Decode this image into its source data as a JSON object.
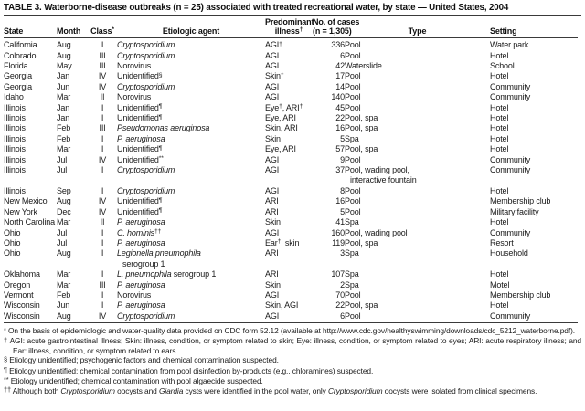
{
  "title": "TABLE 3. Waterborne-disease outbreaks (n = 25) associated with treated recreational water, by state — United States, 2004",
  "colors": {
    "text": "#1a1a1a",
    "rule": "#3a3a3a",
    "background": "#ffffff"
  },
  "table": {
    "columns": [
      {
        "key": "state",
        "label": "State"
      },
      {
        "key": "month",
        "label": "Month"
      },
      {
        "key": "class",
        "label": "Class",
        "sup": "*"
      },
      {
        "key": "agent",
        "label": "Etiologic agent"
      },
      {
        "key": "illness",
        "label": "Predominant",
        "line2": "illness",
        "sup2": "†"
      },
      {
        "key": "cases",
        "label": "No. of cases",
        "line2": "(n = 1,305)"
      },
      {
        "key": "type",
        "label": "Type"
      },
      {
        "key": "setting",
        "label": "Setting"
      }
    ],
    "rows": [
      {
        "state": "California",
        "month": "Aug",
        "class": "I",
        "agent": [
          {
            "t": "Cryptosporidium",
            "i": true
          }
        ],
        "illness": [
          {
            "t": "AGI"
          },
          {
            "t": "†",
            "s": true
          }
        ],
        "cases": "336",
        "type": "Pool",
        "setting": "Water park"
      },
      {
        "state": "Colorado",
        "month": "Aug",
        "class": "III",
        "agent": [
          {
            "t": "Cryptosporidium",
            "i": true
          }
        ],
        "illness": [
          {
            "t": "AGI"
          }
        ],
        "cases": "6",
        "type": "Pool",
        "setting": "Hotel"
      },
      {
        "state": "Florida",
        "month": "May",
        "class": "III",
        "agent": [
          {
            "t": "Norovirus"
          }
        ],
        "illness": [
          {
            "t": "AGI"
          }
        ],
        "cases": "42",
        "type": "Waterslide",
        "setting": "School"
      },
      {
        "state": "Georgia",
        "month": "Jan",
        "class": "IV",
        "agent": [
          {
            "t": "Unidentified"
          },
          {
            "t": "§",
            "s": true
          }
        ],
        "illness": [
          {
            "t": "Skin"
          },
          {
            "t": "†",
            "s": true
          }
        ],
        "cases": "17",
        "type": "Pool",
        "setting": "Hotel"
      },
      {
        "state": "Georgia",
        "month": "Jun",
        "class": "IV",
        "agent": [
          {
            "t": "Cryptosporidium",
            "i": true
          }
        ],
        "illness": [
          {
            "t": "AGI"
          }
        ],
        "cases": "14",
        "type": "Pool",
        "setting": "Community"
      },
      {
        "state": "Idaho",
        "month": "Mar",
        "class": "II",
        "agent": [
          {
            "t": "Norovirus"
          }
        ],
        "illness": [
          {
            "t": "AGI"
          }
        ],
        "cases": "140",
        "type": "Pool",
        "setting": "Community"
      },
      {
        "state": "Illinois",
        "month": "Jan",
        "class": "I",
        "agent": [
          {
            "t": "Unidentified"
          },
          {
            "t": "¶",
            "s": true
          }
        ],
        "illness": [
          {
            "t": "Eye"
          },
          {
            "t": "†",
            "s": true
          },
          {
            "t": ", ARI"
          },
          {
            "t": "†",
            "s": true
          }
        ],
        "cases": "45",
        "type": "Pool",
        "setting": "Hotel"
      },
      {
        "state": "Illinois",
        "month": "Jan",
        "class": "I",
        "agent": [
          {
            "t": "Unidentified"
          },
          {
            "t": "¶",
            "s": true
          }
        ],
        "illness": [
          {
            "t": "Eye, ARI"
          }
        ],
        "cases": "22",
        "type": "Pool, spa",
        "setting": "Hotel"
      },
      {
        "state": "Illinois",
        "month": "Feb",
        "class": "III",
        "agent": [
          {
            "t": "Pseudomonas aeruginosa",
            "i": true
          }
        ],
        "illness": [
          {
            "t": "Skin, ARI"
          }
        ],
        "cases": "16",
        "type": "Pool, spa",
        "setting": "Hotel"
      },
      {
        "state": "Illinois",
        "month": "Feb",
        "class": "I",
        "agent": [
          {
            "t": "P. aeruginosa",
            "i": true
          }
        ],
        "illness": [
          {
            "t": "Skin"
          }
        ],
        "cases": "5",
        "type": "Spa",
        "setting": "Hotel"
      },
      {
        "state": "Illinois",
        "month": "Mar",
        "class": "I",
        "agent": [
          {
            "t": "Unidentified"
          },
          {
            "t": "¶",
            "s": true
          }
        ],
        "illness": [
          {
            "t": "Eye, ARI"
          }
        ],
        "cases": "57",
        "type": "Pool, spa",
        "setting": "Hotel"
      },
      {
        "state": "Illinois",
        "month": "Jul",
        "class": "IV",
        "agent": [
          {
            "t": "Unidentified"
          },
          {
            "t": "**",
            "s": true
          }
        ],
        "illness": [
          {
            "t": "AGI"
          }
        ],
        "cases": "9",
        "type": "Pool",
        "setting": "Community"
      },
      {
        "state": "Illinois",
        "month": "Jul",
        "class": "I",
        "agent": [
          {
            "t": "Cryptosporidium",
            "i": true
          }
        ],
        "illness": [
          {
            "t": "AGI"
          }
        ],
        "cases": "37",
        "type": "Pool, wading pool,\ninteractive fountain",
        "setting": "Community"
      },
      {
        "state": "Illinois",
        "month": "Sep",
        "class": "I",
        "agent": [
          {
            "t": "Cryptosporidium",
            "i": true
          }
        ],
        "illness": [
          {
            "t": "AGI"
          }
        ],
        "cases": "8",
        "type": "Pool",
        "setting": "Hotel"
      },
      {
        "state": "New Mexico",
        "month": "Aug",
        "class": "IV",
        "agent": [
          {
            "t": "Unidentified"
          },
          {
            "t": "¶",
            "s": true
          }
        ],
        "illness": [
          {
            "t": "ARI"
          }
        ],
        "cases": "16",
        "type": "Pool",
        "setting": "Membership club"
      },
      {
        "state": "New York",
        "month": "Dec",
        "class": "IV",
        "agent": [
          {
            "t": "Unidentified"
          },
          {
            "t": "¶",
            "s": true
          }
        ],
        "illness": [
          {
            "t": "ARI"
          }
        ],
        "cases": "5",
        "type": "Pool",
        "setting": "Military facility"
      },
      {
        "state": "North Carolina",
        "month": "Mar",
        "class": "II",
        "agent": [
          {
            "t": "P. aeruginosa",
            "i": true
          }
        ],
        "illness": [
          {
            "t": "Skin"
          }
        ],
        "cases": "41",
        "type": "Spa",
        "setting": "Hotel"
      },
      {
        "state": "Ohio",
        "month": "Jul",
        "class": "I",
        "agent": [
          {
            "t": "C. hominis",
            "i": true
          },
          {
            "t": "††",
            "s": true
          }
        ],
        "illness": [
          {
            "t": "AGI"
          }
        ],
        "cases": "160",
        "type": "Pool, wading pool",
        "setting": "Community"
      },
      {
        "state": "Ohio",
        "month": "Jul",
        "class": "I",
        "agent": [
          {
            "t": "P. aeruginosa",
            "i": true
          }
        ],
        "illness": [
          {
            "t": "Ear"
          },
          {
            "t": "†",
            "s": true
          },
          {
            "t": ", skin"
          }
        ],
        "cases": "119",
        "type": "Pool, spa",
        "setting": "Resort"
      },
      {
        "state": "Ohio",
        "month": "Aug",
        "class": "I",
        "agent": [
          {
            "t": "Legionella pneumophila",
            "i": true
          },
          {
            "br": true
          },
          {
            "t": "serogroup 1",
            "c": true
          }
        ],
        "illness": [
          {
            "t": "ARI"
          }
        ],
        "cases": "3",
        "type": "Spa",
        "setting": "Household"
      },
      {
        "state": "Oklahoma",
        "month": "Mar",
        "class": "I",
        "agent": [
          {
            "t": "L. pneumophila",
            "i": true
          },
          {
            "t": " serogroup 1"
          }
        ],
        "illness": [
          {
            "t": "ARI"
          }
        ],
        "cases": "107",
        "type": "Spa",
        "setting": "Hotel"
      },
      {
        "state": "Oregon",
        "month": "Mar",
        "class": "III",
        "agent": [
          {
            "t": "P. aeruginosa",
            "i": true
          }
        ],
        "illness": [
          {
            "t": "Skin"
          }
        ],
        "cases": "2",
        "type": "Spa",
        "setting": "Motel"
      },
      {
        "state": "Vermont",
        "month": "Feb",
        "class": "I",
        "agent": [
          {
            "t": "Norovirus"
          }
        ],
        "illness": [
          {
            "t": "AGI"
          }
        ],
        "cases": "70",
        "type": "Pool",
        "setting": "Membership club"
      },
      {
        "state": "Wisconsin",
        "month": "Jun",
        "class": "I",
        "agent": [
          {
            "t": "P. aeruginosa",
            "i": true
          }
        ],
        "illness": [
          {
            "t": "Skin, AGI"
          }
        ],
        "cases": "22",
        "type": "Pool, spa",
        "setting": "Hotel"
      },
      {
        "state": "Wisconsin",
        "month": "Aug",
        "class": "IV",
        "agent": [
          {
            "t": "Cryptosporidium",
            "i": true
          }
        ],
        "illness": [
          {
            "t": "AGI"
          }
        ],
        "cases": "6",
        "type": "Pool",
        "setting": "Community"
      }
    ]
  },
  "footnotes": [
    {
      "marker": "*",
      "segments": [
        {
          "t": "On the basis of epidemiologic and water-quality data provided on CDC form 52.12 (available at http://www.cdc.gov/healthyswimming/downloads/cdc_5212_waterborne.pdf)."
        }
      ]
    },
    {
      "marker": "†",
      "segments": [
        {
          "t": "AGI: acute gastrointestinal illness; Skin: illness, condition, or symptom related to skin; Eye: illness, condition, or symptom related to eyes; ARI: acute respiratory illness; and Ear: illness, condition, or symptom related to ears."
        }
      ]
    },
    {
      "marker": "§",
      "segments": [
        {
          "t": "Etiology unidentified; psychogenic factors and chemical contamination suspected."
        }
      ]
    },
    {
      "marker": "¶",
      "segments": [
        {
          "t": "Etiology unidentified; chemical contamination from pool disinfection by-products (e.g., chloramines) suspected."
        }
      ]
    },
    {
      "marker": "**",
      "segments": [
        {
          "t": "Etiology unidentified; chemical contamination with pool algaecide suspected."
        }
      ]
    },
    {
      "marker": "††",
      "segments": [
        {
          "t": "Although both "
        },
        {
          "t": "Cryptosporidium",
          "i": true
        },
        {
          "t": " oocysts and "
        },
        {
          "t": "Giardia",
          "i": true
        },
        {
          "t": " cysts were identified in the pool water, only "
        },
        {
          "t": "Cryptosporidium",
          "i": true
        },
        {
          "t": " oocysts were isolated from clinical specimens."
        }
      ]
    }
  ]
}
